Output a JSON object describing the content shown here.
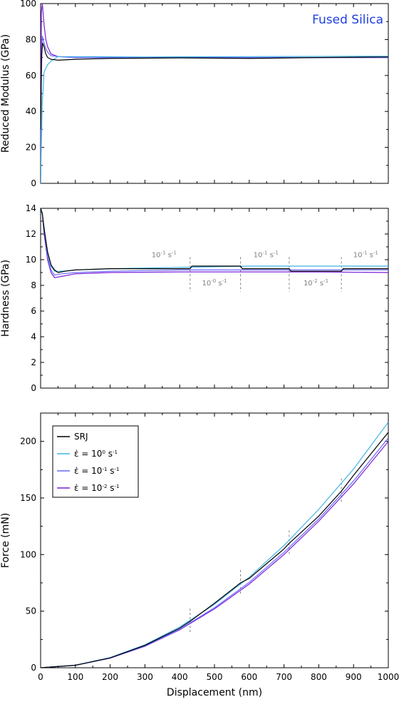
{
  "material_label": "Fused Silica",
  "colors": {
    "SRJ": "#000000",
    "rate0": "#42b4e6",
    "rate1": "#6a6aff",
    "rate2": "#7a1fd8",
    "annotation": "#808080",
    "material": "#1f3fe0"
  },
  "chart_data": [
    {
      "id": "modulus",
      "type": "line",
      "ylabel": "Reduced Modulus (GPa)",
      "xlabel": "",
      "xlim": [
        0,
        1000
      ],
      "ylim": [
        0,
        100
      ],
      "xticks": [
        0,
        100,
        200,
        300,
        400,
        500,
        600,
        700,
        800,
        900,
        1000
      ],
      "yticks": [
        0,
        20,
        40,
        60,
        80,
        100
      ],
      "yticklabels": [
        "0",
        "20",
        "40",
        "60",
        "80",
        "100"
      ],
      "series": [
        {
          "key": "rate2",
          "x": [
            0,
            2,
            5,
            10,
            15,
            20,
            30,
            50,
            100,
            300,
            600,
            1000
          ],
          "y": [
            0,
            95,
            100,
            88,
            80,
            76,
            72,
            70.5,
            70,
            70,
            70,
            70
          ]
        },
        {
          "key": "rate1",
          "x": [
            0,
            2,
            5,
            10,
            15,
            20,
            30,
            50,
            100,
            300,
            600,
            1000
          ],
          "y": [
            0,
            60,
            82,
            78,
            75,
            73,
            71,
            70.5,
            70,
            70,
            70,
            70
          ]
        },
        {
          "key": "rate0",
          "x": [
            0,
            2,
            5,
            10,
            20,
            30,
            50,
            100,
            300,
            600,
            1000
          ],
          "y": [
            0,
            20,
            45,
            62,
            66,
            68,
            70.5,
            70.5,
            70.3,
            70.5,
            70.7
          ]
        },
        {
          "key": "SRJ",
          "x": [
            0,
            3,
            6,
            10,
            15,
            20,
            30,
            50,
            100,
            200,
            400,
            600,
            800,
            1000
          ],
          "y": [
            30,
            72,
            78,
            76,
            72,
            70,
            69,
            68.5,
            69,
            69.5,
            69.8,
            69.5,
            70,
            70.3
          ]
        }
      ]
    },
    {
      "id": "hardness",
      "type": "line",
      "ylabel": "Hardness (GPa)",
      "xlabel": "",
      "xlim": [
        0,
        1000
      ],
      "ylim": [
        0,
        14
      ],
      "xticks": [
        0,
        100,
        200,
        300,
        400,
        500,
        600,
        700,
        800,
        900,
        1000
      ],
      "yticks": [
        0,
        2,
        4,
        6,
        8,
        10,
        12,
        14
      ],
      "yticklabels": [
        "0",
        "2",
        "4",
        "6",
        "8",
        "10",
        "12",
        "14"
      ],
      "series": [
        {
          "key": "rate2",
          "x": [
            0,
            5,
            10,
            20,
            30,
            40,
            60,
            100,
            200,
            400,
            600,
            800,
            1000
          ],
          "y": [
            14,
            13.5,
            12,
            10,
            9,
            8.6,
            8.7,
            8.9,
            9.0,
            9.05,
            9.05,
            9.05,
            9.0
          ]
        },
        {
          "key": "rate1",
          "x": [
            0,
            5,
            10,
            20,
            30,
            40,
            60,
            100,
            200,
            400,
            600,
            800,
            1000
          ],
          "y": [
            14,
            13.6,
            12.2,
            10.2,
            9.2,
            8.8,
            8.9,
            9.0,
            9.1,
            9.2,
            9.2,
            9.2,
            9.2
          ]
        },
        {
          "key": "rate0",
          "x": [
            0,
            5,
            10,
            20,
            30,
            40,
            60,
            100,
            200,
            400,
            600,
            800,
            1000
          ],
          "y": [
            14,
            13.5,
            12.5,
            10.5,
            9.5,
            9.1,
            9.1,
            9.2,
            9.3,
            9.4,
            9.5,
            9.5,
            9.5
          ]
        },
        {
          "key": "SRJ",
          "x": [
            0,
            5,
            10,
            20,
            30,
            40,
            50,
            70,
            100,
            200,
            430,
            435,
            575,
            580,
            715,
            720,
            865,
            870,
            1000
          ],
          "y": [
            14,
            13.6,
            12.4,
            10.6,
            9.6,
            9.2,
            9.0,
            9.1,
            9.2,
            9.3,
            9.3,
            9.5,
            9.5,
            9.3,
            9.3,
            9.1,
            9.1,
            9.3,
            9.3
          ]
        }
      ],
      "annotations": [
        {
          "text": "10",
          "sup": "-1",
          "unit": "s",
          "unitsup": "-1",
          "x": 355,
          "y": 10.2
        },
        {
          "text": "10",
          "sup": "-0",
          "unit": "s",
          "unitsup": "-1",
          "x": 500,
          "y": 8.0
        },
        {
          "text": "10",
          "sup": "-1",
          "unit": "s",
          "unitsup": "-1",
          "x": 648,
          "y": 10.2
        },
        {
          "text": "10",
          "sup": "-2",
          "unit": "s",
          "unitsup": "-1",
          "x": 792,
          "y": 8.0
        },
        {
          "text": "10",
          "sup": "-1",
          "unit": "s",
          "unitsup": "-1",
          "x": 935,
          "y": 10.2
        }
      ],
      "markers_x": [
        430,
        575,
        715,
        865
      ]
    },
    {
      "id": "force",
      "type": "line",
      "ylabel": "Force (mN)",
      "xlabel": "Displacement (nm)",
      "xlim": [
        0,
        1000
      ],
      "ylim": [
        0,
        225
      ],
      "xticks": [
        0,
        100,
        200,
        300,
        400,
        500,
        600,
        700,
        800,
        900,
        1000
      ],
      "xticklabels": [
        "0",
        "100",
        "200",
        "300",
        "400",
        "500",
        "600",
        "700",
        "800",
        "900",
        "1000"
      ],
      "yticks": [
        0,
        50,
        100,
        150,
        200
      ],
      "yticklabels": [
        "0",
        "50",
        "100",
        "150",
        "200"
      ],
      "series": [
        {
          "key": "rate2",
          "name_prefix": "ε̇ = 10",
          "name_sup": "-2",
          "name_unit": " s",
          "name_unitsup": "-1",
          "x": [
            0,
            100,
            200,
            300,
            400,
            500,
            600,
            700,
            800,
            900,
            1000
          ],
          "y": [
            0,
            2.2,
            8.5,
            19,
            33.5,
            52,
            74,
            100,
            129.5,
            162.5,
            200
          ]
        },
        {
          "key": "rate1",
          "name_prefix": "ε̇ = 10",
          "name_sup": "-1",
          "name_unit": " s",
          "name_unitsup": "-1",
          "x": [
            0,
            100,
            200,
            300,
            400,
            500,
            600,
            700,
            800,
            900,
            1000
          ],
          "y": [
            0,
            2.2,
            8.6,
            19.3,
            34,
            53,
            75.5,
            102,
            131.5,
            165,
            203
          ]
        },
        {
          "key": "rate0",
          "name_prefix": "ε̇ = 10",
          "name_sup": "0",
          "name_unit": " s",
          "name_unitsup": "-1",
          "x": [
            0,
            100,
            200,
            300,
            400,
            500,
            600,
            700,
            800,
            900,
            1000
          ],
          "y": [
            0,
            2.3,
            9,
            20.3,
            36,
            56,
            80,
            108,
            140,
            175.5,
            217
          ]
        },
        {
          "key": "SRJ",
          "name": "SRJ",
          "x": [
            0,
            100,
            200,
            300,
            400,
            430,
            500,
            575,
            600,
            700,
            715,
            800,
            865,
            900,
            1000
          ],
          "y": [
            0,
            2.2,
            8.7,
            19.8,
            35,
            41,
            57,
            75,
            79,
            105,
            110,
            134,
            156,
            170,
            208
          ]
        }
      ],
      "markers_x": [
        430,
        575,
        715,
        865
      ],
      "legend": {
        "position": "top-left"
      }
    }
  ]
}
